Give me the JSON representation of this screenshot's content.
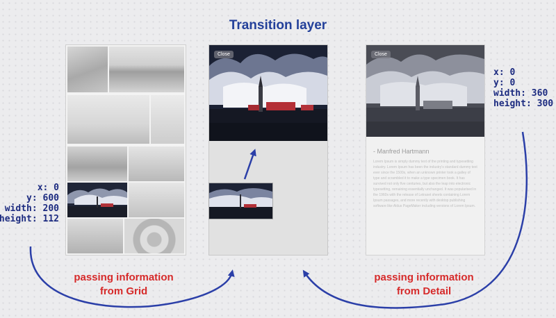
{
  "title": "Transition layer",
  "grid_coords": {
    "x": "x: 0",
    "y": "y: 600",
    "width": "width: 200",
    "height": "height: 112"
  },
  "detail_coords": {
    "x": "x: 0",
    "y": "y: 0",
    "width": "width: 360",
    "height": "height: 300"
  },
  "captions": {
    "grid": [
      "passing information",
      "from Grid"
    ],
    "detail": [
      "passing information",
      "from Detail"
    ]
  },
  "transition_panel": {
    "close_label": "Close"
  },
  "detail_panel": {
    "close_label": "Close",
    "author": "- Manfred Hartmann",
    "body": "Lorem Ipsum is simply dummy text of the printing and typesetting industry. Lorem Ipsum has been the industry's standard dummy text ever since the 1500s, when an unknown printer took a galley of type and scrambled it to make a type specimen book. It has survived not only five centuries, but also the leap into electronic typesetting, remaining essentially unchanged. It was popularised in the 1960s with the release of Letraset sheets containing Lorem Ipsum passages, and more recently with desktop publishing software like Aldus PageMaker including versions of Lorem Ipsum."
  },
  "colors": {
    "title": "#23409a",
    "caption": "#d62a2a",
    "arrow": "#2b3fa8",
    "coords": "#1c2b80"
  }
}
